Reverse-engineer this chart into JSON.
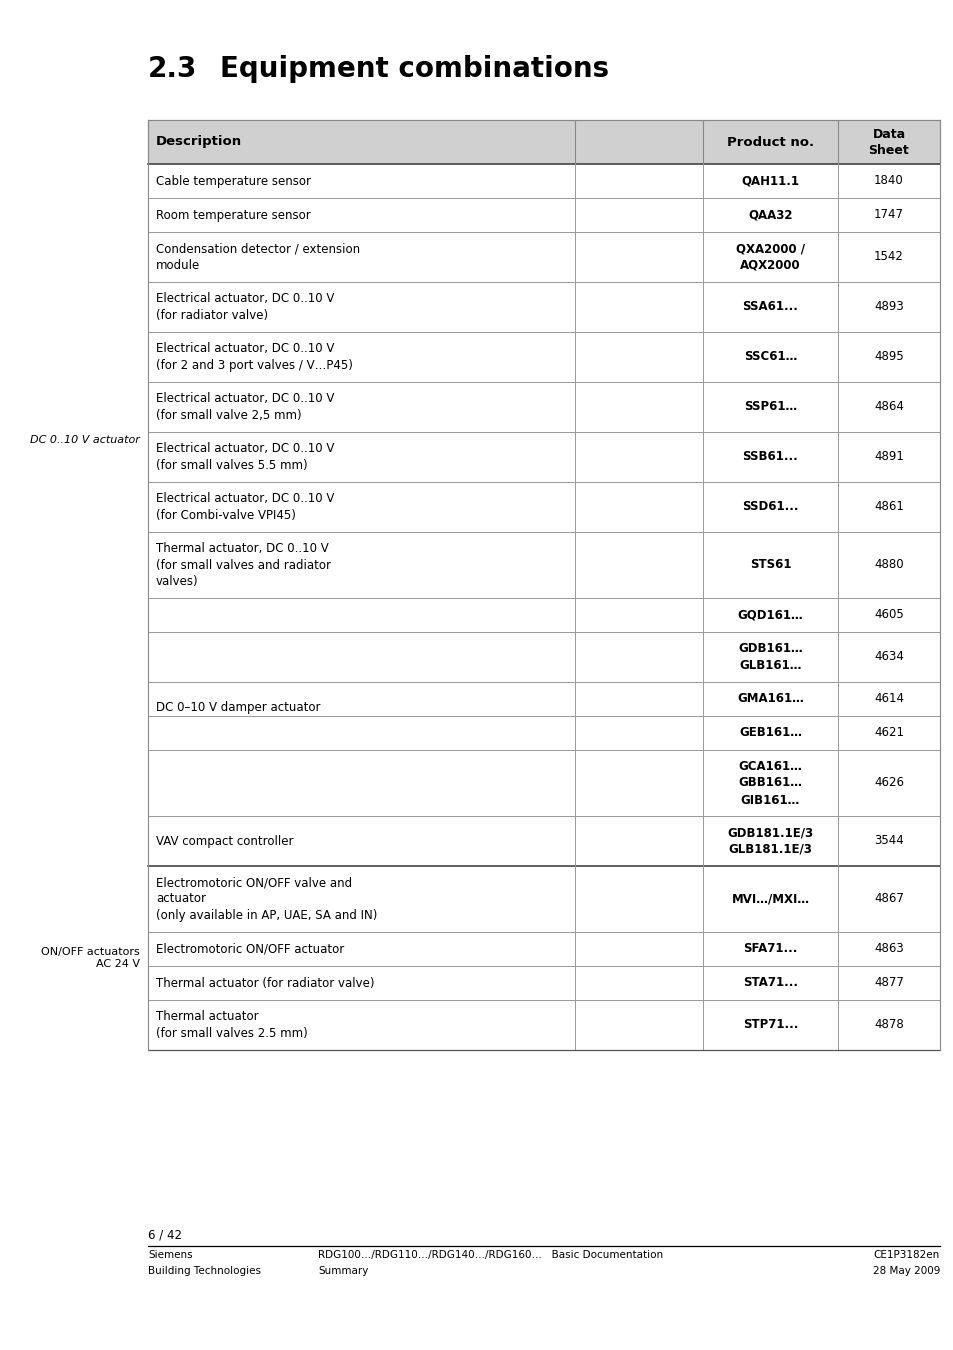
{
  "title_number": "2.3",
  "title_text": "Equipment combinations",
  "header_bg": "#d0d0d0",
  "bg_color": "#ffffff",
  "text_color": "#000000",
  "footer_page": "6 / 42",
  "footer_left1": "Siemens",
  "footer_left2": "Building Technologies",
  "footer_mid1": "RDG100…/RDG110…/RDG140…/RDG160…   Basic Documentation",
  "footer_mid2": "Summary",
  "footer_right1": "CE1P3182en",
  "footer_right2": "28 May 2009",
  "rows": [
    {
      "desc": "Cable temperature sensor",
      "product": "QAH11.1",
      "sheet": "1840",
      "nlines": 1,
      "img_rows": 1
    },
    {
      "desc": "Room temperature sensor",
      "product": "QAA32",
      "sheet": "1747",
      "nlines": 1,
      "img_rows": 1
    },
    {
      "desc": "Condensation detector / extension\nmodule",
      "product": "QXA2000 /\nAQX2000",
      "sheet": "1542",
      "nlines": 2,
      "img_rows": 2
    },
    {
      "desc": "Electrical actuator, DC 0..10 V\n(for radiator valve)",
      "product": "SSA61...",
      "sheet": "4893",
      "nlines": 2,
      "img_rows": 2
    },
    {
      "desc": "Electrical actuator, DC 0..10 V\n(for 2 and 3 port valves / V…P45)",
      "product": "SSC61…",
      "sheet": "4895",
      "nlines": 2,
      "img_rows": 2
    },
    {
      "desc": "Electrical actuator, DC 0..10 V\n(for small valve 2,5 mm)",
      "product": "SSP61…",
      "sheet": "4864",
      "nlines": 2,
      "img_rows": 2
    },
    {
      "desc": "Electrical actuator, DC 0..10 V\n(for small valves 5.5 mm)",
      "product": "SSB61...",
      "sheet": "4891",
      "nlines": 2,
      "img_rows": 2
    },
    {
      "desc": "Electrical actuator, DC 0..10 V\n(for Combi-valve VPI45)",
      "product": "SSD61...",
      "sheet": "4861",
      "nlines": 2,
      "img_rows": 2
    },
    {
      "desc": "Thermal actuator, DC 0..10 V\n(for small valves and radiator\nvalves)",
      "product": "STS61",
      "sheet": "4880",
      "nlines": 3,
      "img_rows": 3
    },
    {
      "desc": "",
      "product": "GQD161…",
      "sheet": "4605",
      "nlines": 1,
      "img_rows": 1,
      "damper_img_group": 1
    },
    {
      "desc": "",
      "product": "GDB161…\nGLB161…",
      "sheet": "4634",
      "nlines": 2,
      "img_rows": 2,
      "damper_img_group": 2
    },
    {
      "desc": "",
      "product": "GMA161…",
      "sheet": "4614",
      "nlines": 1,
      "img_rows": 1,
      "damper_img_group": 3
    },
    {
      "desc": "",
      "product": "GEB161…",
      "sheet": "4621",
      "nlines": 1,
      "img_rows": 1,
      "damper_img_group": 3
    },
    {
      "desc": "",
      "product": "GCA161…\nGBB161…\nGIB161…",
      "sheet": "4626",
      "nlines": 3,
      "img_rows": 3,
      "damper_img_group": 4
    },
    {
      "desc": "VAV compact controller",
      "product": "GDB181.1E/3\nGLB181.1E/3",
      "sheet": "3544",
      "nlines": 2,
      "img_rows": 2
    },
    {
      "desc": "Electromotoric ON/OFF valve and\nactuator\n(only available in AP, UAE, SA and IN)",
      "product": "MVI…/MXI…",
      "sheet": "4867",
      "nlines": 3,
      "img_rows": 3
    },
    {
      "desc": "Electromotoric ON/OFF actuator",
      "product": "SFA71...",
      "sheet": "4863",
      "nlines": 1,
      "img_rows": 1
    },
    {
      "desc": "Thermal actuator (for radiator valve)",
      "product": "STA71...",
      "sheet": "4877",
      "nlines": 1,
      "img_rows": 1
    },
    {
      "desc": "Thermal actuator\n(for small valves 2.5 mm)",
      "product": "STP71...",
      "sheet": "4878",
      "nlines": 2,
      "img_rows": 2
    }
  ]
}
